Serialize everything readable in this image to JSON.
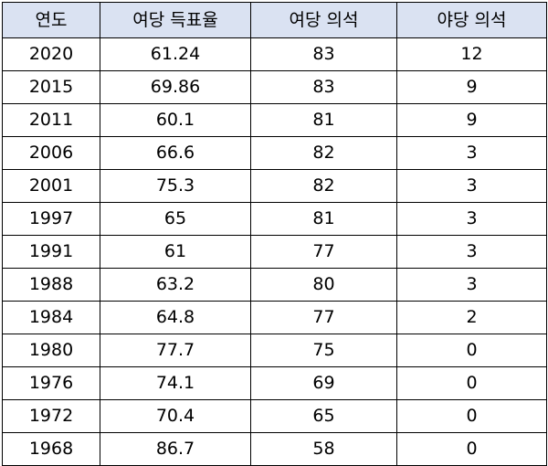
{
  "table": {
    "headers": [
      "연도",
      "여당 득표율",
      "여당 의석",
      "야당 의석"
    ],
    "rows": [
      [
        "2020",
        "61.24",
        "83",
        "12"
      ],
      [
        "2015",
        "69.86",
        "83",
        "9"
      ],
      [
        "2011",
        "60.1",
        "81",
        "9"
      ],
      [
        "2006",
        "66.6",
        "82",
        "3"
      ],
      [
        "2001",
        "75.3",
        "82",
        "3"
      ],
      [
        "1997",
        "65",
        "81",
        "3"
      ],
      [
        "1991",
        "61",
        "77",
        "3"
      ],
      [
        "1988",
        "63.2",
        "80",
        "3"
      ],
      [
        "1984",
        "64.8",
        "77",
        "2"
      ],
      [
        "1980",
        "77.7",
        "75",
        "0"
      ],
      [
        "1976",
        "74.1",
        "69",
        "0"
      ],
      [
        "1972",
        "70.4",
        "65",
        "0"
      ],
      [
        "1968",
        "86.7",
        "58",
        "0"
      ]
    ]
  },
  "colors": {
    "header_background": "#dae2f2",
    "border": "#000000",
    "text": "#000000"
  }
}
